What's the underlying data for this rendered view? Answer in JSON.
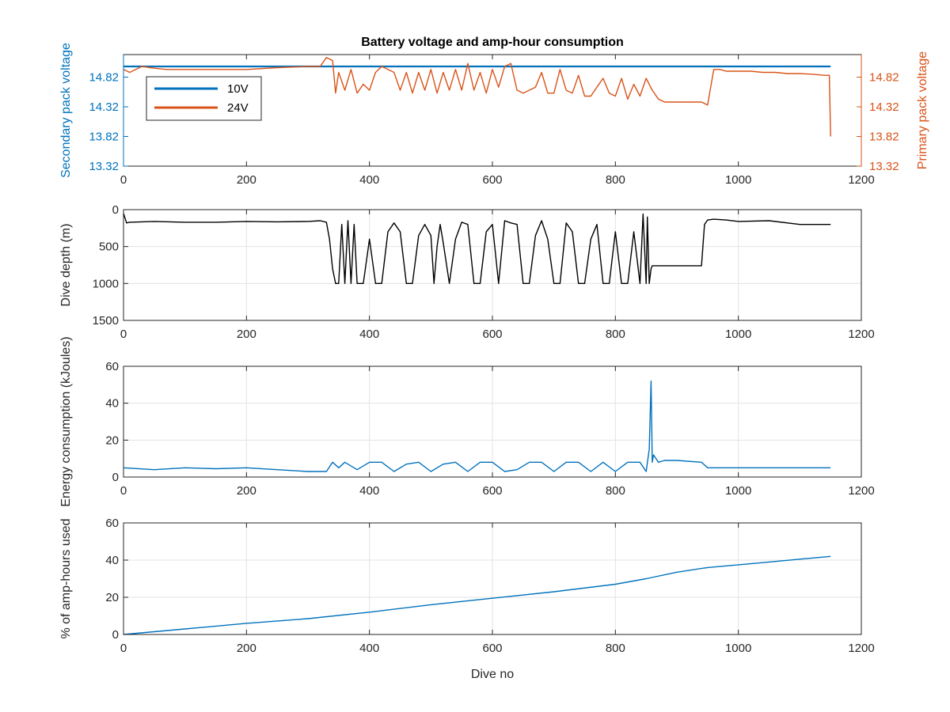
{
  "chart_data": [
    {
      "type": "line",
      "title": "Battery voltage and amp-hour consumption",
      "xlabel": "",
      "ylabel": "Secondary pack voltage",
      "ylabel_right": "Primary pack voltage",
      "xlim": [
        0,
        1200
      ],
      "ylim": [
        13.32,
        15.2
      ],
      "ylim_right": [
        13.32,
        15.2
      ],
      "xticks": [
        "0",
        "200",
        "400",
        "600",
        "800",
        "1000",
        "1200"
      ],
      "yticks": [
        "13.32",
        "13.82",
        "14.32",
        "14.82"
      ],
      "yticks_right": [
        "13.32",
        "13.82",
        "14.32",
        "14.82"
      ],
      "grid": false,
      "legend": "top-left",
      "series": [
        {
          "name": "10V",
          "color": "#0072BD",
          "axis": "left",
          "x": [
            0,
            1150
          ],
          "y": [
            15.0,
            15.0
          ]
        },
        {
          "name": "24V",
          "color": "#D95319",
          "axis": "right",
          "x": [
            0,
            10,
            30,
            50,
            70,
            100,
            150,
            200,
            250,
            300,
            320,
            330,
            340,
            345,
            350,
            360,
            370,
            380,
            390,
            400,
            410,
            420,
            430,
            440,
            450,
            460,
            470,
            480,
            490,
            500,
            510,
            520,
            530,
            540,
            550,
            560,
            570,
            580,
            590,
            600,
            610,
            620,
            630,
            640,
            650,
            660,
            670,
            680,
            690,
            700,
            710,
            720,
            730,
            740,
            750,
            760,
            770,
            780,
            790,
            800,
            810,
            820,
            830,
            840,
            850,
            860,
            870,
            880,
            890,
            900,
            910,
            920,
            930,
            940,
            950,
            960,
            970,
            980,
            1000,
            1020,
            1040,
            1060,
            1080,
            1100,
            1120,
            1140,
            1148,
            1150
          ],
          "y": [
            14.95,
            14.9,
            15.0,
            14.97,
            14.95,
            14.95,
            14.95,
            14.95,
            14.98,
            15.0,
            15.0,
            15.15,
            15.1,
            14.55,
            14.9,
            14.6,
            14.95,
            14.55,
            14.7,
            14.6,
            14.9,
            15.0,
            14.95,
            14.9,
            14.6,
            14.9,
            14.55,
            14.9,
            14.6,
            14.95,
            14.55,
            14.9,
            14.6,
            14.95,
            14.6,
            15.05,
            14.6,
            14.9,
            14.55,
            14.95,
            14.65,
            15.0,
            15.05,
            14.6,
            14.55,
            14.6,
            14.65,
            14.9,
            14.55,
            14.55,
            14.95,
            14.6,
            14.55,
            14.85,
            14.5,
            14.5,
            14.65,
            14.8,
            14.55,
            14.5,
            14.8,
            14.45,
            14.7,
            14.5,
            14.8,
            14.6,
            14.45,
            14.4,
            14.4,
            14.4,
            14.4,
            14.4,
            14.4,
            14.4,
            14.35,
            14.95,
            14.95,
            14.92,
            14.92,
            14.92,
            14.9,
            14.9,
            14.88,
            14.88,
            14.87,
            14.85,
            14.85,
            13.82
          ]
        }
      ]
    },
    {
      "type": "line",
      "title": "",
      "xlabel": "",
      "ylabel": "Dive depth (m)",
      "xlim": [
        0,
        1200
      ],
      "ylim": [
        0,
        1500
      ],
      "y_reversed": true,
      "xticks": [
        "0",
        "200",
        "400",
        "600",
        "800",
        "1000",
        "1200"
      ],
      "yticks": [
        "0",
        "500",
        "1000",
        "1500"
      ],
      "grid": true,
      "series": [
        {
          "color": "#000000",
          "x": [
            0,
            5,
            10,
            50,
            100,
            150,
            200,
            250,
            300,
            320,
            330,
            335,
            340,
            345,
            350,
            355,
            360,
            365,
            370,
            375,
            380,
            390,
            400,
            410,
            420,
            430,
            440,
            450,
            460,
            470,
            480,
            490,
            500,
            505,
            510,
            515,
            520,
            530,
            540,
            550,
            560,
            570,
            580,
            590,
            600,
            610,
            620,
            630,
            640,
            650,
            660,
            670,
            680,
            690,
            700,
            710,
            720,
            730,
            740,
            750,
            760,
            770,
            780,
            790,
            800,
            810,
            820,
            830,
            840,
            845,
            850,
            852,
            855,
            858,
            860,
            870,
            880,
            890,
            900,
            910,
            920,
            930,
            940,
            945,
            950,
            960,
            980,
            1000,
            1050,
            1100,
            1150
          ],
          "y": [
            50,
            180,
            170,
            160,
            170,
            170,
            160,
            165,
            160,
            150,
            170,
            400,
            800,
            1000,
            1000,
            200,
            1000,
            150,
            1000,
            200,
            1000,
            1000,
            400,
            1000,
            1000,
            300,
            180,
            300,
            1000,
            1000,
            350,
            200,
            350,
            1000,
            500,
            200,
            450,
            1000,
            400,
            170,
            200,
            1000,
            1000,
            300,
            200,
            1000,
            150,
            180,
            200,
            1000,
            1000,
            350,
            150,
            400,
            1000,
            1000,
            180,
            300,
            1000,
            1000,
            400,
            200,
            1000,
            1000,
            300,
            1000,
            1000,
            300,
            1000,
            60,
            1000,
            100,
            1000,
            800,
            760,
            760,
            760,
            760,
            760,
            760,
            760,
            760,
            760,
            200,
            140,
            130,
            140,
            160,
            150,
            200,
            200
          ]
        }
      ]
    },
    {
      "type": "line",
      "title": "",
      "xlabel": "",
      "ylabel": "Energy consumption (kJoules)",
      "xlim": [
        0,
        1200
      ],
      "ylim": [
        0,
        60
      ],
      "xticks": [
        "0",
        "200",
        "400",
        "600",
        "800",
        "1000",
        "1200"
      ],
      "yticks": [
        "0",
        "20",
        "40",
        "60"
      ],
      "grid": true,
      "series": [
        {
          "color": "#0072BD",
          "x": [
            0,
            50,
            100,
            150,
            200,
            250,
            300,
            330,
            340,
            350,
            360,
            380,
            400,
            420,
            440,
            460,
            480,
            500,
            520,
            540,
            560,
            580,
            600,
            620,
            640,
            660,
            680,
            700,
            720,
            740,
            760,
            780,
            800,
            820,
            840,
            850,
            855,
            858,
            860,
            862,
            870,
            880,
            900,
            940,
            950,
            960,
            1000,
            1050,
            1100,
            1150
          ],
          "y": [
            5,
            4,
            5,
            4.5,
            5,
            4,
            3,
            3,
            8,
            5,
            8,
            4,
            8,
            8,
            3,
            7,
            8,
            3,
            7,
            8,
            3,
            8,
            8,
            3,
            4,
            8,
            8,
            3,
            8,
            8,
            3,
            8,
            3,
            8,
            8,
            3,
            15,
            52,
            8,
            12,
            8,
            9,
            9,
            8,
            5,
            5,
            5,
            5,
            5,
            5
          ]
        }
      ]
    },
    {
      "type": "line",
      "title": "",
      "xlabel": "Dive no",
      "ylabel": "% of amp-hours used",
      "xlim": [
        0,
        1200
      ],
      "ylim": [
        0,
        60
      ],
      "xticks": [
        "0",
        "200",
        "400",
        "600",
        "800",
        "1000",
        "1200"
      ],
      "yticks": [
        "0",
        "20",
        "40",
        "60"
      ],
      "grid": true,
      "series": [
        {
          "color": "#0072BD",
          "x": [
            0,
            100,
            200,
            300,
            400,
            500,
            600,
            700,
            800,
            850,
            900,
            950,
            1000,
            1050,
            1100,
            1150
          ],
          "y": [
            0,
            3,
            6,
            8.5,
            12,
            16,
            19.5,
            23,
            27,
            30,
            33.5,
            36,
            37.5,
            39,
            40.5,
            42
          ]
        }
      ]
    }
  ]
}
